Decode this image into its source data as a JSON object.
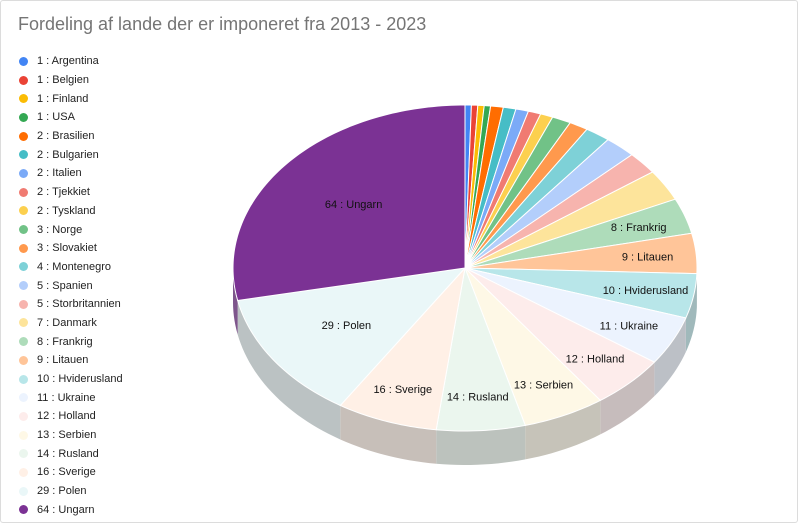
{
  "chart_data": {
    "type": "pie",
    "title": "Fordeling af lande der er imponeret fra 2013 - 2023",
    "legend_position": "left",
    "three_d": true,
    "slices": [
      {
        "label": "1 : Argentina",
        "value": 1,
        "color": "#4285f4"
      },
      {
        "label": "1 : Belgien",
        "value": 1,
        "color": "#ea4335"
      },
      {
        "label": "1 : Finland",
        "value": 1,
        "color": "#fbbc04"
      },
      {
        "label": "1 : USA",
        "value": 1,
        "color": "#34a853"
      },
      {
        "label": "2 : Brasilien",
        "value": 2,
        "color": "#ff6d01"
      },
      {
        "label": "2 : Bulgarien",
        "value": 2,
        "color": "#46bdc6"
      },
      {
        "label": "2 : Italien",
        "value": 2,
        "color": "#7baaf7"
      },
      {
        "label": "2 : Tjekkiet",
        "value": 2,
        "color": "#f07b72"
      },
      {
        "label": "2 : Tyskland",
        "value": 2,
        "color": "#fcd04f"
      },
      {
        "label": "3 : Norge",
        "value": 3,
        "color": "#71c287"
      },
      {
        "label": "3 : Slovakiet",
        "value": 3,
        "color": "#ff994d"
      },
      {
        "label": "4 : Montenegro",
        "value": 4,
        "color": "#7ed1d7"
      },
      {
        "label": "5 : Spanien",
        "value": 5,
        "color": "#b3cefb"
      },
      {
        "label": "5 : Storbritannien",
        "value": 5,
        "color": "#f7b4ae"
      },
      {
        "label": "7 : Danmark",
        "value": 7,
        "color": "#fde49b"
      },
      {
        "label": "8 : Frankrig",
        "value": 8,
        "color": "#aedcba"
      },
      {
        "label": "9 : Litauen",
        "value": 9,
        "color": "#ffc599"
      },
      {
        "label": "10 : Hviderusland",
        "value": 10,
        "color": "#b8e6e9"
      },
      {
        "label": "11 : Ukraine",
        "value": 11,
        "color": "#ecf3fe"
      },
      {
        "label": "12 : Holland",
        "value": 12,
        "color": "#fdeceb"
      },
      {
        "label": "13 : Serbien",
        "value": 13,
        "color": "#fef8e6"
      },
      {
        "label": "14 : Rusland",
        "value": 14,
        "color": "#ebf6ee"
      },
      {
        "label": "16 : Sverige",
        "value": 16,
        "color": "#fff0e6"
      },
      {
        "label": "29 : Polen",
        "value": 29,
        "color": "#eaf7f8"
      },
      {
        "label": "64 : Ungarn",
        "value": 64,
        "color": "#7b3294"
      }
    ],
    "labeled_slices": [
      "64 : Ungarn",
      "29 : Polen",
      "16 : Sverige",
      "14 : Rusland",
      "13 : Serbien",
      "12 : Holland",
      "11 : Ukraine",
      "10 : Hviderusland",
      "9 : Litauen",
      "8 : Frankrig"
    ]
  }
}
